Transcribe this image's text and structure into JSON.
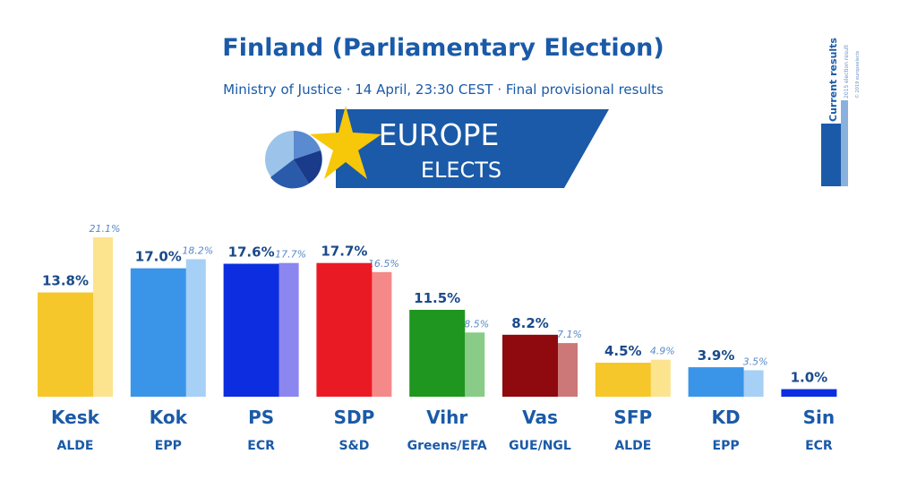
{
  "header": {
    "title": "Finland (Parliamentary Election)",
    "subtitle": "Ministry of Justice · 14 April, 23:30 CEST · Final provisional results"
  },
  "logo": {
    "line1": "EUROPE",
    "line2": "ELECTS"
  },
  "badge": {
    "main": "Current results",
    "secondary": "2015 election result",
    "small": "© 2019 europeelects"
  },
  "colors": {
    "Kesk": [
      "#f5c72a",
      "#fce38e"
    ],
    "Kok": [
      "#3a95e8",
      "#a6d0f5"
    ],
    "PS": [
      "#0c2ee0",
      "#8c86f0"
    ],
    "SDP": [
      "#ea1a24",
      "#f58989"
    ],
    "Vihr": [
      "#1f961f",
      "#88cc88"
    ],
    "Vas": [
      "#8e0a0e",
      "#cc7878"
    ],
    "SFP": [
      "#f5c72a",
      "#fce38e"
    ],
    "KD": [
      "#3a95e8",
      "#a6d0f5"
    ],
    "Sin": [
      "#0c2ee0",
      "#8c86f0"
    ],
    "label": "#1a4a8a",
    "prev_label": "#5a8ac8"
  },
  "chart_data": {
    "type": "bar",
    "categories": [
      "Kesk",
      "Kok",
      "PS",
      "SDP",
      "Vihr",
      "Vas",
      "SFP",
      "KD",
      "Sin"
    ],
    "groups": [
      "ALDE",
      "EPP",
      "ECR",
      "S&D",
      "Greens/EFA",
      "GUE/NGL",
      "ALDE",
      "EPP",
      "ECR"
    ],
    "series": [
      {
        "name": "Current results",
        "values": [
          13.8,
          17.0,
          17.6,
          17.7,
          11.5,
          8.2,
          4.5,
          3.9,
          1.0
        ],
        "labels": [
          "13.8%",
          "17.0%",
          "17.6%",
          "17.7%",
          "11.5%",
          "8.2%",
          "4.5%",
          "3.9%",
          "1.0%"
        ]
      },
      {
        "name": "2015 election result",
        "values": [
          21.1,
          18.2,
          17.7,
          16.5,
          8.5,
          7.1,
          4.9,
          3.5,
          null
        ],
        "labels": [
          "21.1%",
          "18.2%",
          "17.7%",
          "16.5%",
          "8.5%",
          "7.1%",
          "4.9%",
          "3.5%",
          ""
        ]
      }
    ],
    "ylim": [
      0,
      21.1
    ]
  }
}
